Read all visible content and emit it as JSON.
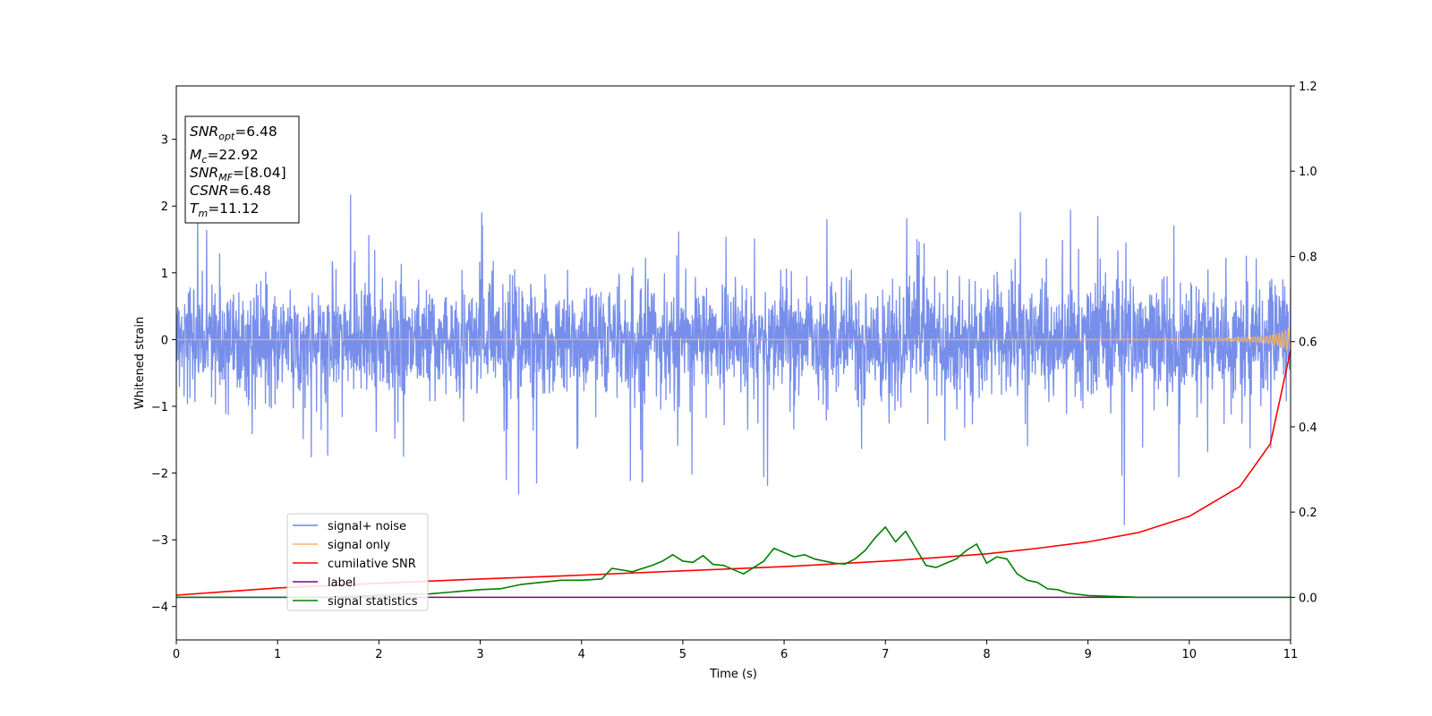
{
  "chart_data": {
    "type": "line",
    "xlabel": "Time (s)",
    "ylabel": "Whitened strain",
    "xlim": [
      0,
      11
    ],
    "ylim": [
      -4.5,
      3.8
    ],
    "y2lim": [
      -0.1,
      1.2
    ],
    "xticks": [
      0,
      1,
      2,
      3,
      4,
      5,
      6,
      7,
      8,
      9,
      10,
      11
    ],
    "yticks": [
      -4,
      -3,
      -2,
      -1,
      0,
      1,
      2,
      3
    ],
    "y2ticks": [
      0.0,
      0.2,
      0.4,
      0.6,
      0.8,
      1.0,
      1.2
    ],
    "grid": false,
    "legend_placement": "lower-left",
    "annotation": {
      "lines": [
        {
          "base": "SNR",
          "sub": "opt",
          "value": "=6.48"
        },
        {
          "base": "M",
          "sub": "c",
          "value": "=22.92"
        },
        {
          "base": "SNR",
          "sub": "MF",
          "value": "=[8.04]"
        },
        {
          "base": "CSNR",
          "sub": "",
          "value": "=6.48"
        },
        {
          "base": "T",
          "sub": "m",
          "value": "=11.12"
        }
      ]
    },
    "series": [
      {
        "name": "signal+ noise",
        "color": "#6b86e8",
        "axis": "left",
        "kind": "noise",
        "noise": {
          "sigma": 0.4,
          "typical_peak": 1.3,
          "max_peak": 2.17,
          "min_peak": -2.78
        },
        "notable_spikes": [
          {
            "x": 1.72,
            "y": 2.17
          },
          {
            "x": 3.38,
            "y": -2.32
          },
          {
            "x": 4.6,
            "y": -2.13
          },
          {
            "x": 5.8,
            "y": -2.06
          },
          {
            "x": 9.36,
            "y": -2.78
          }
        ]
      },
      {
        "name": "signal only",
        "color": "#f5b461",
        "axis": "left",
        "kind": "chirp",
        "chirp": {
          "t_merge": 11.12,
          "amp_at_end": 0.2,
          "freq_start": 14,
          "freq_end": 34
        }
      },
      {
        "name": "cumilative SNR",
        "color": "#ff0000",
        "axis": "right",
        "x": [
          0,
          1,
          2,
          3,
          4,
          5,
          6,
          7,
          7.5,
          8,
          8.5,
          9,
          9.5,
          10,
          10.5,
          10.8,
          11
        ],
        "y": [
          0.005,
          0.022,
          0.033,
          0.043,
          0.052,
          0.062,
          0.072,
          0.085,
          0.093,
          0.102,
          0.115,
          0.13,
          0.152,
          0.19,
          0.26,
          0.36,
          0.58
        ]
      },
      {
        "name": "label",
        "color": "#800080",
        "axis": "right",
        "x": [
          0,
          11
        ],
        "y": [
          0.0,
          0.0
        ]
      },
      {
        "name": "signal statistics",
        "color": "#008000",
        "axis": "right",
        "x": [
          0,
          0.5,
          1,
          1.5,
          2,
          2.5,
          3,
          3.2,
          3.4,
          3.6,
          3.8,
          4,
          4.2,
          4.3,
          4.5,
          4.7,
          4.8,
          4.9,
          5,
          5.1,
          5.2,
          5.3,
          5.4,
          5.5,
          5.6,
          5.7,
          5.8,
          5.9,
          6,
          6.1,
          6.2,
          6.3,
          6.4,
          6.5,
          6.6,
          6.7,
          6.8,
          6.9,
          7,
          7.1,
          7.2,
          7.3,
          7.4,
          7.5,
          7.6,
          7.7,
          7.8,
          7.9,
          8,
          8.1,
          8.2,
          8.3,
          8.4,
          8.5,
          8.6,
          8.7,
          8.8,
          9,
          9.5,
          10,
          11
        ],
        "y": [
          0.0,
          0.0,
          0.0,
          0.0,
          0.005,
          0.008,
          0.018,
          0.02,
          0.03,
          0.035,
          0.04,
          0.04,
          0.043,
          0.068,
          0.06,
          0.075,
          0.085,
          0.1,
          0.085,
          0.082,
          0.098,
          0.077,
          0.075,
          0.065,
          0.055,
          0.07,
          0.085,
          0.115,
          0.105,
          0.095,
          0.1,
          0.09,
          0.085,
          0.08,
          0.078,
          0.09,
          0.11,
          0.14,
          0.165,
          0.13,
          0.155,
          0.115,
          0.075,
          0.07,
          0.08,
          0.09,
          0.11,
          0.125,
          0.08,
          0.095,
          0.09,
          0.055,
          0.04,
          0.035,
          0.02,
          0.018,
          0.01,
          0.004,
          0.0,
          0.0,
          0.0
        ]
      }
    ]
  }
}
